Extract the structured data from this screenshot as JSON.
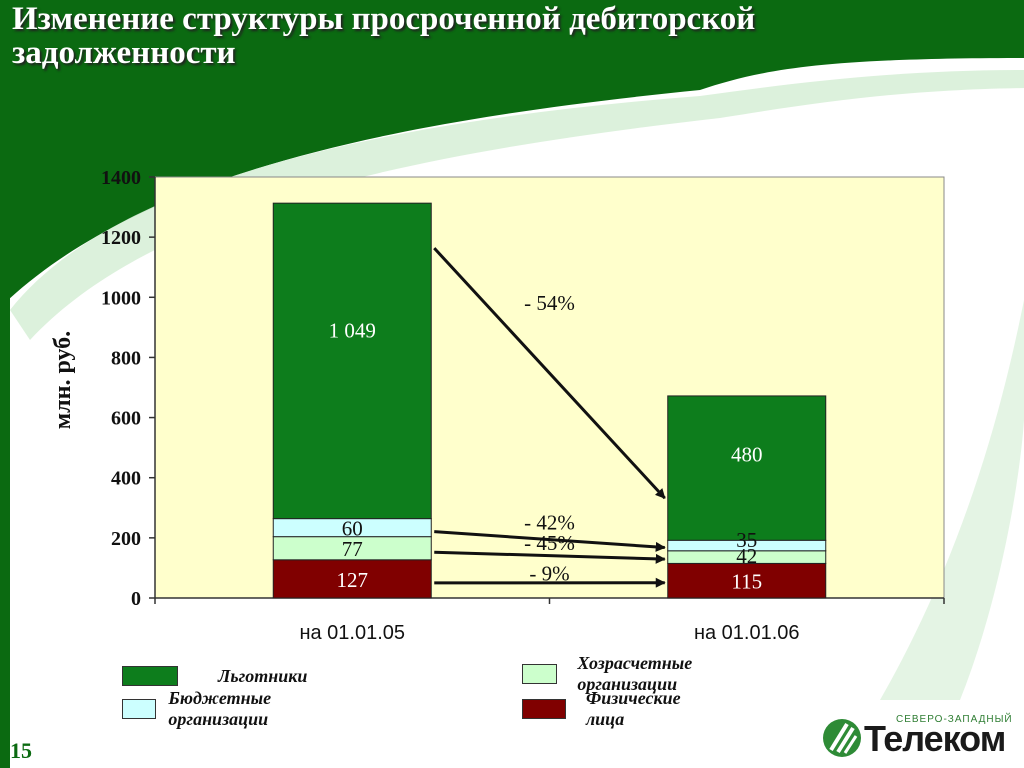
{
  "header": {
    "title_line1": "Изменение структуры просроченной дебиторской",
    "title_line2": "задолженности"
  },
  "colors": {
    "header_green": "#0b6a11",
    "plot_bg": "#ffffcc",
    "lgotniki": "#0d7d1c",
    "hozraschet": "#ccffcc",
    "budget": "#ccffff",
    "fiz": "#800000"
  },
  "chart_data": {
    "type": "bar",
    "stacked": true,
    "categories": [
      "на 01.01.05",
      "на 01.01.06"
    ],
    "ylabel": "млн. руб.",
    "ylim": [
      0,
      1400
    ],
    "yticks": [
      0,
      200,
      400,
      600,
      800,
      1000,
      1200,
      1400
    ],
    "grid": false,
    "legend_position": "bottom",
    "series": [
      {
        "name": "Физические лица",
        "values": [
          127,
          115
        ],
        "labels": [
          "127",
          "115"
        ],
        "color": "#800000",
        "label_color": "#ffffff"
      },
      {
        "name": "Хозрасчетные организации",
        "values": [
          77,
          42
        ],
        "labels": [
          "77",
          "42"
        ],
        "color": "#ccffcc",
        "label_color": "#111111"
      },
      {
        "name": "Бюджетные организации",
        "values": [
          60,
          35
        ],
        "labels": [
          "60",
          "35"
        ],
        "color": "#ccffff",
        "label_color": "#111111"
      },
      {
        "name": "Льготники",
        "values": [
          1049,
          480
        ],
        "labels": [
          "1 049",
          "480"
        ],
        "color": "#0d7d1c",
        "label_color": "#ffffff"
      }
    ],
    "annotations": [
      {
        "text": "- 54%",
        "series": "Льготники"
      },
      {
        "text": "- 42%",
        "series": "Бюджетные организации"
      },
      {
        "text": "- 45%",
        "series": "Хозрасчетные организации"
      },
      {
        "text": "- 9%",
        "series": "Физические лица"
      }
    ]
  },
  "legend": [
    {
      "label": "Льготники",
      "color": "#0d7d1c"
    },
    {
      "label": "Хозрасчетные организации",
      "color": "#ccffcc"
    },
    {
      "label": "Бюджетные организации",
      "color": "#ccffff"
    },
    {
      "label": "Физические лица",
      "color": "#800000"
    }
  ],
  "footer": {
    "page_number": "15",
    "logo_name": "Телеком",
    "logo_subtitle": "СЕВЕРО-ЗАПАДНЫЙ",
    "logo_icon": "telecom-leaf-icon"
  }
}
